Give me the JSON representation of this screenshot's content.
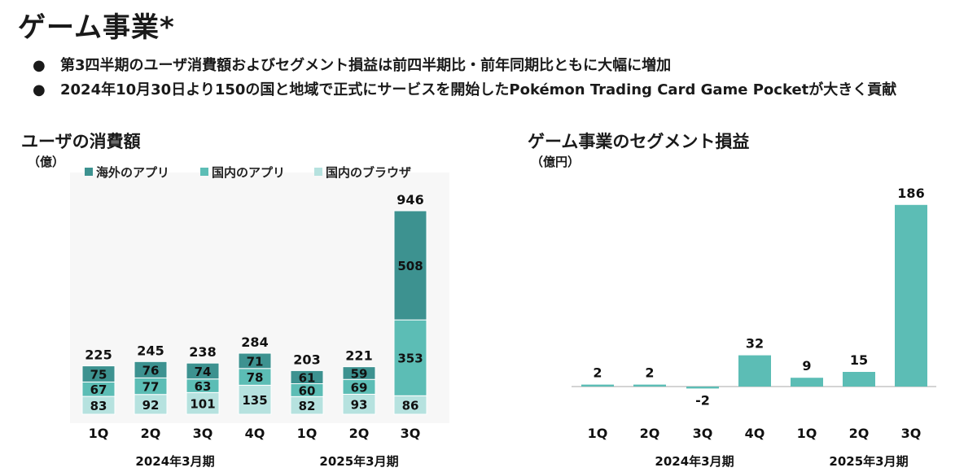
{
  "page": {
    "title": "ゲーム事業*",
    "bullets": [
      "第3四半期のユーザ消費額およびセグメント損益は前四半期比・前年同期比ともに大幅に増加",
      "2024年10月30日より150の国と地域で正式にサービスを開始したPokémon Trading Card Game Pocketが大きく貢献"
    ]
  },
  "colors": {
    "overseas_app": "#3d9290",
    "domestic_app": "#5cbdb5",
    "domestic_browser": "#b6e2df",
    "profit_bar": "#5cbdb5"
  },
  "chart_data": [
    {
      "type": "bar",
      "stacked": true,
      "title": "ユーザの消費額",
      "unit": "（億）",
      "categories": [
        "1Q",
        "2Q",
        "3Q",
        "4Q",
        "1Q",
        "2Q",
        "3Q"
      ],
      "groups": [
        {
          "label": "2024年3月期",
          "categories": 4
        },
        {
          "label": "2025年3月期",
          "categories": 3
        }
      ],
      "series": [
        {
          "name": "国内のブラウザ",
          "values": [
            83,
            92,
            101,
            135,
            82,
            93,
            86
          ]
        },
        {
          "name": "国内のアプリ",
          "values": [
            67,
            77,
            63,
            78,
            60,
            69,
            353
          ]
        },
        {
          "name": "海外のアプリ",
          "values": [
            75,
            76,
            74,
            71,
            61,
            59,
            508
          ]
        }
      ],
      "totals": [
        225,
        245,
        238,
        284,
        203,
        221,
        946
      ],
      "legend": [
        "海外のアプリ",
        "国内のアプリ",
        "国内のブラウザ"
      ],
      "legend_position": "top"
    },
    {
      "type": "bar",
      "title": "ゲーム事業のセグメント損益",
      "unit": "（億円）",
      "categories": [
        "1Q",
        "2Q",
        "3Q",
        "4Q",
        "1Q",
        "2Q",
        "3Q"
      ],
      "groups": [
        {
          "label": "2024年3月期",
          "categories": 4
        },
        {
          "label": "2025年3月期",
          "categories": 3
        }
      ],
      "values": [
        2,
        2,
        -2,
        32,
        9,
        15,
        186
      ],
      "labels": [
        "2",
        "2",
        "-2",
        "32",
        "9",
        "15",
        "186"
      ]
    }
  ]
}
